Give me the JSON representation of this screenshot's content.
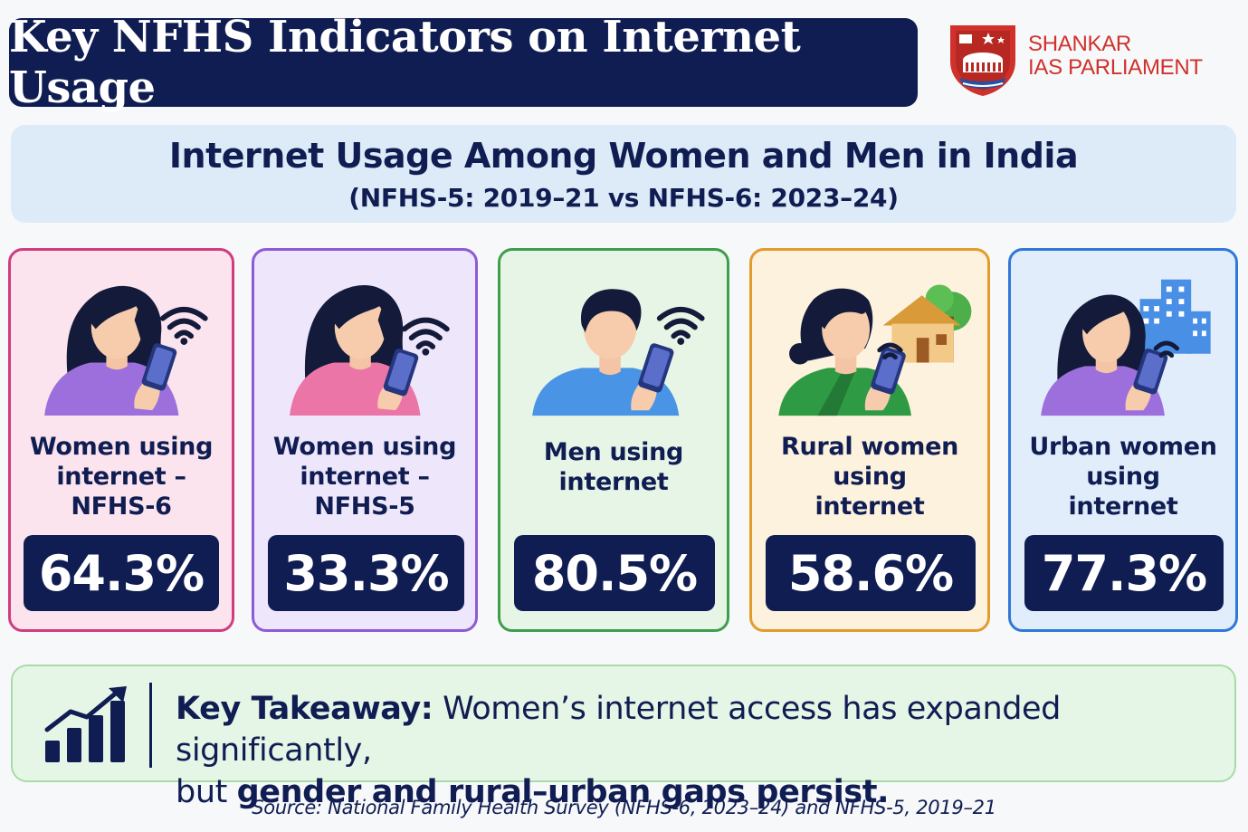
{
  "header": {
    "title": "Key NFHS Indicators on Internet Usage",
    "logo_line1": "SHANKAR",
    "logo_line2": "IAS PARLIAMENT"
  },
  "subtitle": {
    "main": "Internet Usage Among Women and Men in India",
    "period": "(NFHS-5: 2019–21 vs NFHS-6: 2023–24)"
  },
  "cards": [
    {
      "label": "Women using\ninternet –\nNFHS-6",
      "value": "64.3%",
      "border_color": "#d23c7e",
      "bg_color": "#fbe4ee",
      "icon": "woman-phone-icon"
    },
    {
      "label": "Women using\ninternet –\nNFHS-5",
      "value": "33.3%",
      "border_color": "#8c5bd6",
      "bg_color": "#eee6fa",
      "icon": "woman-phone-icon"
    },
    {
      "label": "Men using\ninternet",
      "value": "80.5%",
      "border_color": "#3f9e4e",
      "bg_color": "#e6f5e6",
      "icon": "man-phone-icon"
    },
    {
      "label": "Rural women\nusing\ninternet",
      "value": "58.6%",
      "border_color": "#e39c2c",
      "bg_color": "#fdf2dd",
      "icon": "rural-woman-phone-icon"
    },
    {
      "label": "Urban women\nusing\ninternet",
      "value": "77.3%",
      "border_color": "#2f78d8",
      "bg_color": "#e1edfb",
      "icon": "urban-woman-phone-icon"
    }
  ],
  "takeaway": {
    "lead": "Key Takeaway:",
    "text1": " Women’s internet access has expanded significantly,",
    "text2": "but ",
    "emphasis": "gender and rural–urban gaps persist.",
    "icon": "growth-chart-icon"
  },
  "source": "Source: National Family Health Survey (NFHS-6, 2023–24) and NFHS-5, 2019–21"
}
